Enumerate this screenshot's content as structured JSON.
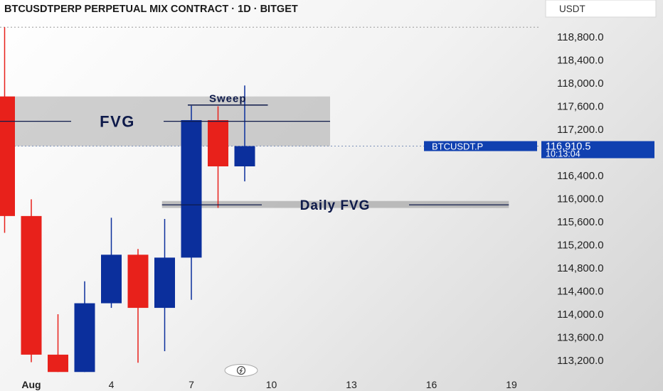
{
  "header": {
    "title": "BTCUSDTPERP PERPETUAL MIX CONTRACT · 1D · BITGET",
    "currency": "USDT"
  },
  "colors": {
    "bull": "#0b2f9c",
    "bear": "#e8211b",
    "annotation": "#0e1a4a",
    "label_bg": "#1040b0",
    "zone": "#9a9a9a"
  },
  "chart_data": {
    "type": "candlestick",
    "title": "BTCUSDTPERP PERPETUAL MIX CONTRACT · 1D · BITGET",
    "ylim": [
      113000,
      119000
    ],
    "x_tick_labels": [
      {
        "day": 1,
        "label": "Aug"
      },
      {
        "day": 4,
        "label": "4"
      },
      {
        "day": 7,
        "label": "7"
      },
      {
        "day": 10,
        "label": "10"
      },
      {
        "day": 13,
        "label": "13"
      },
      {
        "day": 16,
        "label": "16"
      },
      {
        "day": 19,
        "label": "19"
      }
    ],
    "y_tick_labels": [
      {
        "value": 118800,
        "label": "118,800.0"
      },
      {
        "value": 118400,
        "label": "118,400.0"
      },
      {
        "value": 118000,
        "label": "118,000.0"
      },
      {
        "value": 117600,
        "label": "117,600.0"
      },
      {
        "value": 117200,
        "label": "117,200.0"
      },
      {
        "value": 116400,
        "label": "116,400.0"
      },
      {
        "value": 116000,
        "label": "116,000.0"
      },
      {
        "value": 115600,
        "label": "115,600.0"
      },
      {
        "value": 115200,
        "label": "115,200.0"
      },
      {
        "value": 114800,
        "label": "114,800.0"
      },
      {
        "value": 114400,
        "label": "114,400.0"
      },
      {
        "value": 114000,
        "label": "114,000.0"
      },
      {
        "value": 113600,
        "label": "113,600.0"
      },
      {
        "value": 113200,
        "label": "113,200.0"
      }
    ],
    "candles": [
      {
        "day": 0,
        "open": 117770,
        "high": 118970,
        "low": 115410,
        "close": 115700
      },
      {
        "day": 1,
        "open": 115700,
        "high": 115990,
        "low": 113170,
        "close": 113300
      },
      {
        "day": 2,
        "open": 113300,
        "high": 114000,
        "low": 113000,
        "close": 113000
      },
      {
        "day": 3,
        "open": 113000,
        "high": 114570,
        "low": 113000,
        "close": 114190
      },
      {
        "day": 4,
        "open": 114190,
        "high": 115670,
        "low": 114110,
        "close": 115030
      },
      {
        "day": 5,
        "open": 115030,
        "high": 115130,
        "low": 113160,
        "close": 114110
      },
      {
        "day": 6,
        "open": 114110,
        "high": 115650,
        "low": 113360,
        "close": 114980
      },
      {
        "day": 7,
        "open": 114980,
        "high": 117610,
        "low": 114250,
        "close": 117360
      },
      {
        "day": 8,
        "open": 117360,
        "high": 117600,
        "low": 115840,
        "close": 116560
      },
      {
        "day": 9,
        "open": 116560,
        "high": 117960,
        "low": 116300,
        "close": 116910
      }
    ],
    "current_price": {
      "symbol": "BTCUSDT.P",
      "value": 116910.5,
      "label": "116,910.5",
      "countdown": "10:13:04"
    },
    "zones": [
      {
        "label": "FVG",
        "from_day": -0.5,
        "to_day": 12.2,
        "low": 116910,
        "high": 117770
      },
      {
        "label": "Daily FVG",
        "from_day": 5.9,
        "to_day": 18.9,
        "low": 115840,
        "high": 115960
      }
    ],
    "annotations": [
      {
        "label": "Sweep",
        "from_day": 7,
        "to_day": 10,
        "value": 117610
      }
    ],
    "top_dotted_level": 118970
  },
  "chart_meta": {
    "text_fvg": "FVG",
    "text_daily_fvg": "Daily FVG",
    "text_sweep": "Sweep",
    "badge_icon": "lightning-icon"
  }
}
